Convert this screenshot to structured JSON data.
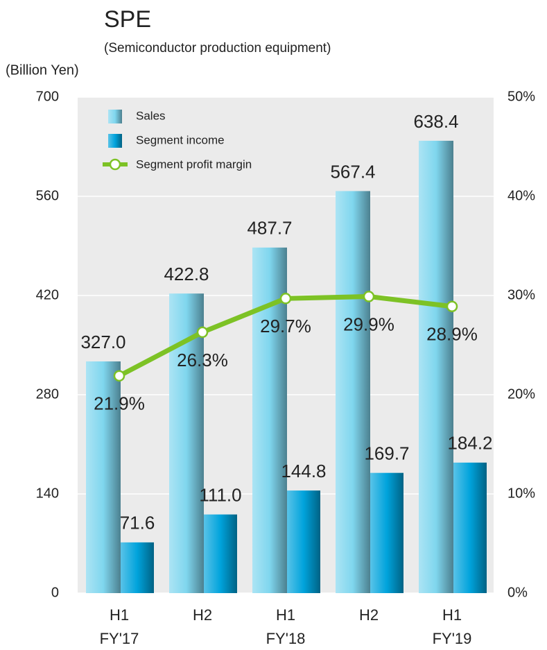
{
  "chart_data": {
    "type": "bar-line",
    "title": "SPE",
    "subtitle": "(Semiconductor production equipment)",
    "y_axis_label": "(Billion Yen)",
    "categories": [
      [
        "H1",
        "FY'17"
      ],
      [
        "H2"
      ],
      [
        "H1",
        "FY'18"
      ],
      [
        "H2"
      ],
      [
        "H1",
        "FY'19"
      ]
    ],
    "series": [
      {
        "name": "Sales",
        "type": "bar",
        "color": "#7fd6ee",
        "values": [
          327.0,
          422.8,
          487.7,
          567.4,
          638.4
        ],
        "value_labels": [
          "327.0",
          "422.8",
          "487.7",
          "567.4",
          "638.4"
        ]
      },
      {
        "name": "Segment income",
        "type": "bar",
        "color": "#00a3dc",
        "values": [
          71.6,
          111.0,
          144.8,
          169.7,
          184.2
        ],
        "value_labels": [
          "71.6",
          "111.0",
          "144.8",
          "169.7",
          "184.2"
        ]
      },
      {
        "name": "Segment profit margin",
        "type": "line",
        "axis": "y2",
        "color": "#7dc225",
        "values": [
          21.9,
          26.3,
          29.7,
          29.9,
          28.9
        ],
        "value_labels": [
          "21.9%",
          "26.3%",
          "29.7%",
          "29.9%",
          "28.9%"
        ]
      }
    ],
    "ylim": [
      0,
      700
    ],
    "yticks": [
      0,
      140,
      280,
      420,
      560,
      700
    ],
    "y2lim": [
      0,
      50
    ],
    "y2ticks": [
      {
        "value": 0,
        "label": "0%"
      },
      {
        "value": 10,
        "label": "10%"
      },
      {
        "value": 20,
        "label": "20%"
      },
      {
        "value": 30,
        "label": "30%"
      },
      {
        "value": 40,
        "label": "40%"
      },
      {
        "value": 50,
        "label": "50%"
      }
    ],
    "grid": true,
    "legend": "top-left"
  }
}
